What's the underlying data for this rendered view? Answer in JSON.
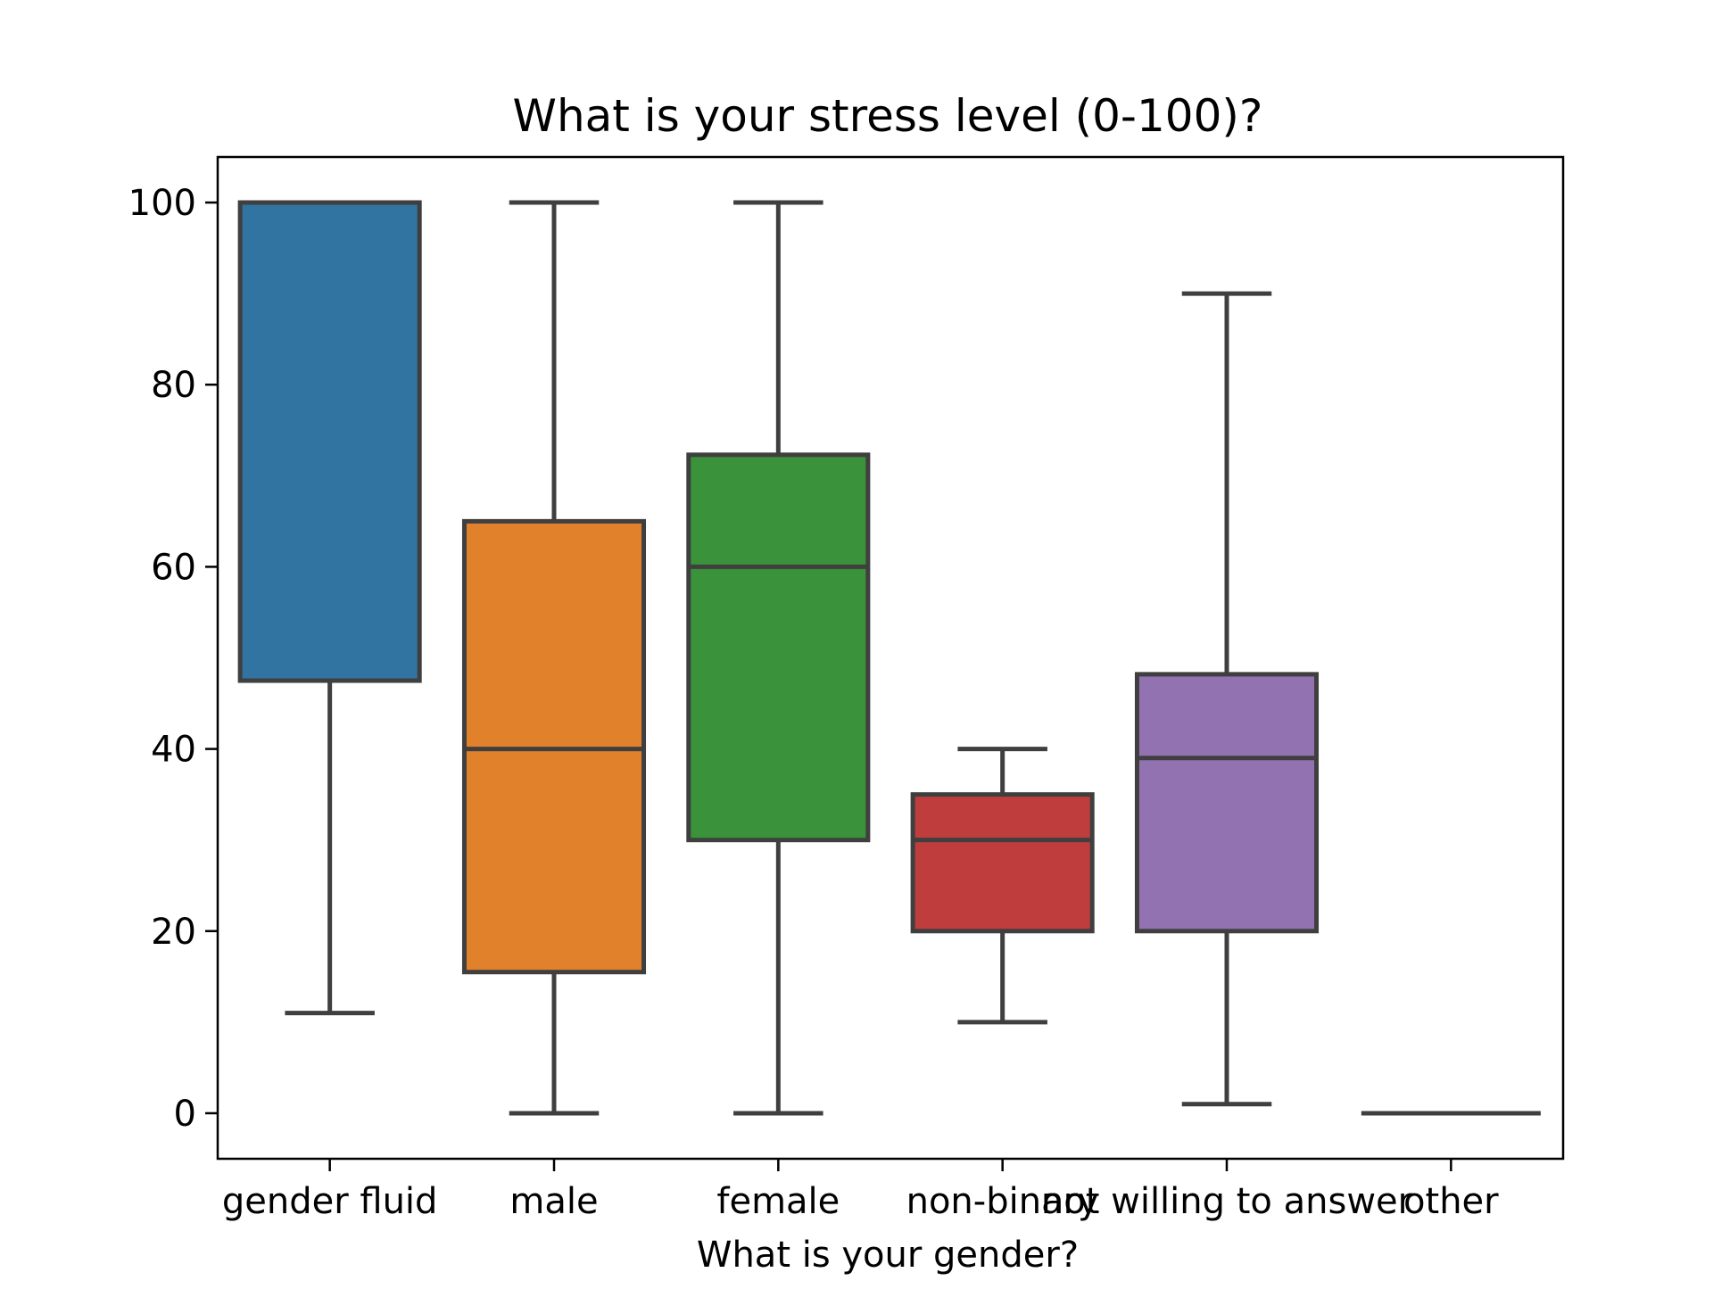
{
  "chart_data": {
    "type": "box",
    "title": "What is your stress level (0-100)?",
    "xlabel": "What is your gender?",
    "ylabel": "",
    "ylim": [
      -5,
      105
    ],
    "yticks": [
      0,
      20,
      40,
      60,
      80,
      100
    ],
    "grid": false,
    "categories": [
      "gender fluid",
      "male",
      "female",
      "non-binary",
      "not willing to answer",
      "other"
    ],
    "boxes": [
      {
        "category": "gender fluid",
        "whisker_low": 11,
        "q1": 47.5,
        "median": 100,
        "q3": 100,
        "whisker_high": 100,
        "color": "#3274a1"
      },
      {
        "category": "male",
        "whisker_low": 0,
        "q1": 15.5,
        "median": 40,
        "q3": 65,
        "whisker_high": 100,
        "color": "#e1812c"
      },
      {
        "category": "female",
        "whisker_low": 0,
        "q1": 30,
        "median": 60,
        "q3": 72.3,
        "whisker_high": 100,
        "color": "#3a923a"
      },
      {
        "category": "non-binary",
        "whisker_low": 10,
        "q1": 20,
        "median": 30,
        "q3": 35,
        "whisker_high": 40,
        "color": "#c03d3e"
      },
      {
        "category": "not willing to answer",
        "whisker_low": 1,
        "q1": 20,
        "median": 39,
        "q3": 48.2,
        "whisker_high": 90,
        "color": "#9372b2"
      },
      {
        "category": "other",
        "whisker_low": 0,
        "q1": 0,
        "median": 0,
        "q3": 0,
        "whisker_high": 0,
        "color": "#845b53"
      }
    ],
    "line_color": "#3f3f3f"
  }
}
